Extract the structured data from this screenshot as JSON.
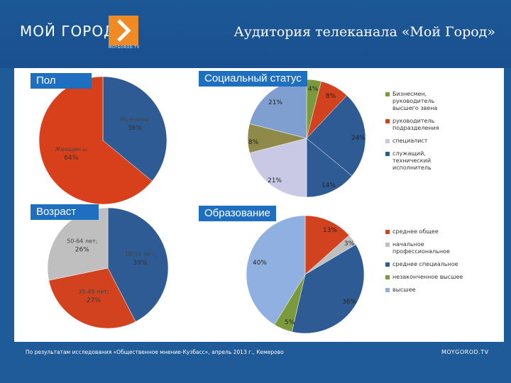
{
  "header": {
    "logo_text": "МОЙ ГОРОД",
    "logo_sub": "MOYGOROD.TV",
    "title": "Аудитория телеканала «Мой Город»"
  },
  "sections": {
    "pol": "Пол",
    "social": "Социальный статус",
    "age": "Возраст",
    "education": "Образование"
  },
  "footer": {
    "note": "По результатам исследования «Общественное мнение-Кузбасс», апрель 2013 г., Кемерово",
    "brand": "MOYGOROD.TV"
  },
  "chart_data": [
    {
      "id": "gender",
      "type": "pie",
      "title": "Пол",
      "slices": [
        {
          "label": "Мужчины",
          "value": 36,
          "display": "36%",
          "color": "#2e5b93"
        },
        {
          "label": "Женщин ы",
          "value": 64,
          "display": "64%",
          "color": "#d8401c"
        }
      ]
    },
    {
      "id": "social",
      "type": "pie",
      "title": "Социальный статус",
      "slices": [
        {
          "label": "",
          "value": 4,
          "display": "4%",
          "color": "#7a9a3c"
        },
        {
          "label": "",
          "value": 8,
          "display": "8%",
          "color": "#d2421e"
        },
        {
          "label": "",
          "value": 24,
          "display": "24%",
          "color": "#2e5b93"
        },
        {
          "label": "",
          "value": 14,
          "display": "14%",
          "color": "#2e5b93"
        },
        {
          "label": "",
          "value": 21,
          "display": "21%",
          "color": "#c9c9e6"
        },
        {
          "label": "",
          "value": 8,
          "display": "8%",
          "color": "#8f8a4a"
        },
        {
          "label": "",
          "value": 21,
          "display": "21%",
          "color": "#7f9fd0"
        }
      ],
      "legend": [
        {
          "label": "Бизнесмен, руководитель высшего звена",
          "color": "#7a9a3c"
        },
        {
          "label": "руководитель подразделения",
          "color": "#d2421e"
        },
        {
          "label": "специалист",
          "color": "#c9c9e6"
        },
        {
          "label": "служащий, технический исполнитель",
          "color": "#2e5b93"
        }
      ]
    },
    {
      "id": "age",
      "type": "pie",
      "title": "Возраст",
      "slices": [
        {
          "label": "18-34 лет;",
          "value": 39,
          "display": "39%",
          "color": "#2e5b93"
        },
        {
          "label": "35-49 лет;",
          "value": 27,
          "display": "27%",
          "color": "#d2421e"
        },
        {
          "label": "50-64 лет;",
          "value": 26,
          "display": "26%",
          "color": "#bfbfbf"
        }
      ]
    },
    {
      "id": "education",
      "type": "pie",
      "title": "Образование",
      "slices": [
        {
          "label": "среднее общее",
          "value": 13,
          "display": "13%",
          "color": "#d2421e"
        },
        {
          "label": "начальное профессиональное",
          "value": 3,
          "display": "3%",
          "color": "#bfbfbf"
        },
        {
          "label": "среднее специальное",
          "value": 36,
          "display": "36%",
          "color": "#2e5b93"
        },
        {
          "label": "незаконченное высшее",
          "value": 5,
          "display": "5%",
          "color": "#7a9a3c"
        },
        {
          "label": "высшее",
          "value": 40,
          "display": "40%",
          "color": "#8fb0e0"
        }
      ]
    }
  ]
}
